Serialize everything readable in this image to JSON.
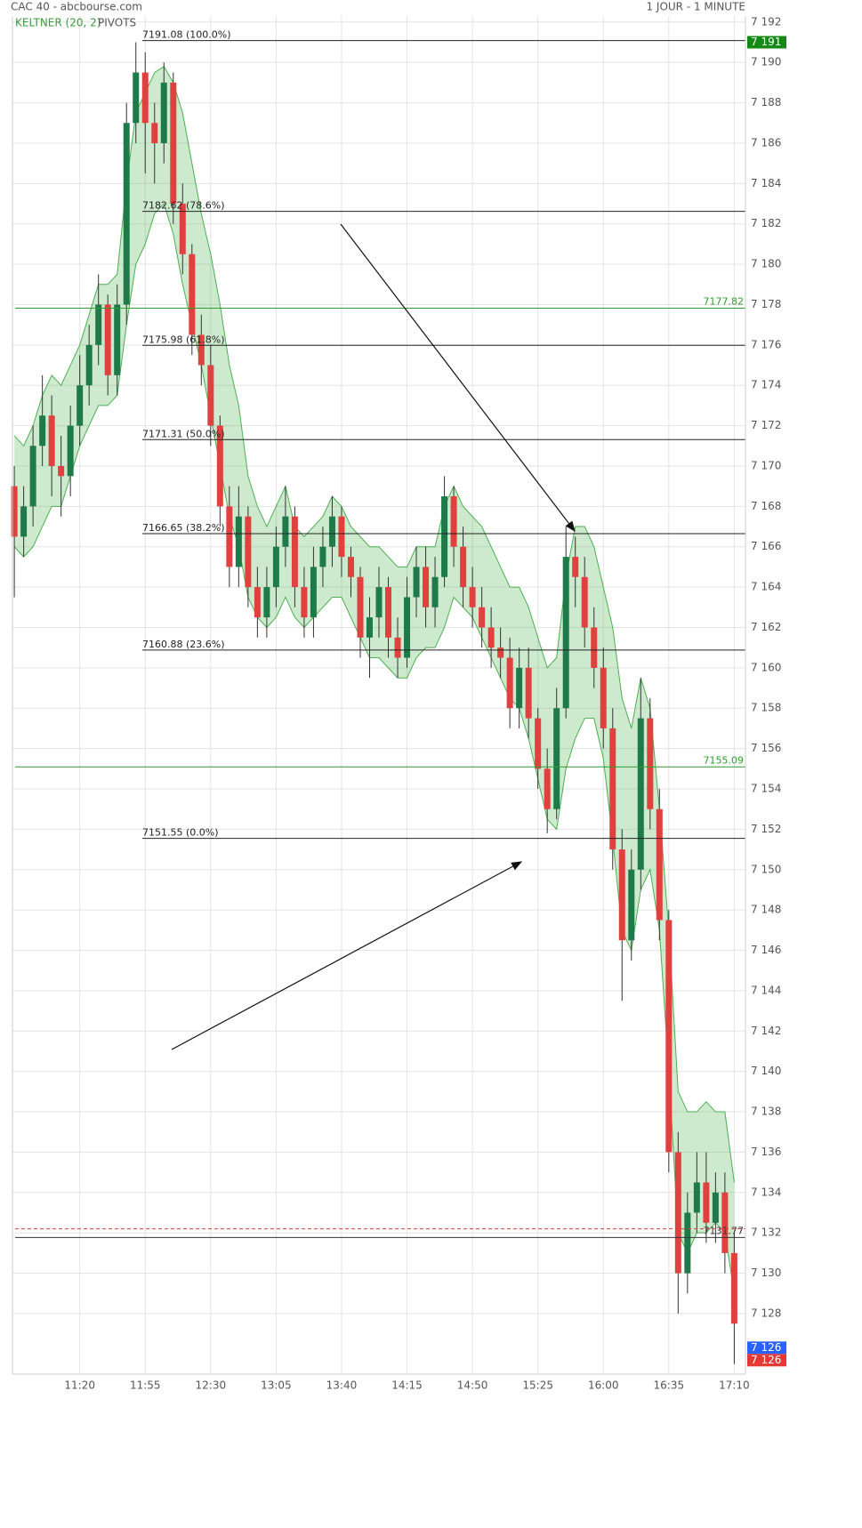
{
  "chart_data": {
    "type": "candlestick",
    "title": "CAC 40 - abcbourse.com",
    "subtitle": "1 JOUR - 1 MINUTE",
    "legend": [
      "KELTNER (20, 2)",
      "PIVOTS"
    ],
    "x": [
      "10:45",
      "10:50",
      "10:55",
      "11:00",
      "11:05",
      "11:10",
      "11:15",
      "11:20",
      "11:25",
      "11:30",
      "11:35",
      "11:40",
      "11:45",
      "11:50",
      "11:55",
      "12:00",
      "12:05",
      "12:10",
      "12:15",
      "12:20",
      "12:25",
      "12:30",
      "12:35",
      "12:40",
      "12:45",
      "12:50",
      "12:55",
      "13:00",
      "13:05",
      "13:10",
      "13:15",
      "13:20",
      "13:25",
      "13:30",
      "13:35",
      "13:40",
      "13:45",
      "13:50",
      "13:55",
      "14:00",
      "14:05",
      "14:10",
      "14:15",
      "14:20",
      "14:25",
      "14:30",
      "14:35",
      "14:40",
      "14:45",
      "14:50",
      "14:55",
      "15:00",
      "15:05",
      "15:10",
      "15:15",
      "15:20",
      "15:25",
      "15:30",
      "15:35",
      "15:40",
      "15:45",
      "15:50",
      "15:55",
      "16:00",
      "16:05",
      "16:10",
      "16:15",
      "16:20",
      "16:25",
      "16:30",
      "16:35",
      "16:40",
      "16:45",
      "16:50",
      "16:55",
      "17:00",
      "17:05",
      "17:10"
    ],
    "open": [
      7169,
      7166.5,
      7168,
      7171,
      7172.5,
      7170,
      7169.5,
      7172,
      7174,
      7176,
      7178,
      7174.5,
      7178,
      7187,
      7189.5,
      7187,
      7186,
      7189,
      7183,
      7180.5,
      7176.5,
      7175,
      7172,
      7168,
      7165,
      7167.5,
      7164,
      7162.5,
      7164,
      7166,
      7167.5,
      7164,
      7162.5,
      7165,
      7166,
      7167.5,
      7165.5,
      7164.5,
      7161.5,
      7162.5,
      7164,
      7161.5,
      7160.5,
      7163.5,
      7165,
      7163,
      7164.5,
      7168.5,
      7166,
      7164,
      7163,
      7162,
      7161,
      7160.5,
      7158,
      7160,
      7157.5,
      7155,
      7153,
      7158,
      7165.5,
      7164.5,
      7162,
      7160,
      7157,
      7151,
      7146.5,
      7150,
      7157.5,
      7153,
      7147.5,
      7136,
      7130,
      7133,
      7134.5,
      7132.5,
      7134,
      7131
    ],
    "high": [
      7170,
      7169,
      7172,
      7174.5,
      7173.5,
      7171.5,
      7173,
      7175.5,
      7177,
      7179.5,
      7178.5,
      7179,
      7188,
      7191,
      7190.5,
      7188,
      7190,
      7189.5,
      7184,
      7181,
      7177.5,
      7176,
      7172.5,
      7169,
      7169,
      7168,
      7165,
      7165,
      7167,
      7169,
      7168,
      7165,
      7166,
      7167,
      7168.5,
      7168,
      7166,
      7165,
      7163.5,
      7165,
      7164.5,
      7162.5,
      7164.5,
      7166,
      7166,
      7165.5,
      7169.5,
      7169,
      7167,
      7165,
      7164,
      7163,
      7162,
      7161.5,
      7161,
      7161,
      7158,
      7156,
      7159,
      7167,
      7166.5,
      7165.5,
      7163,
      7161,
      7158,
      7152,
      7151,
      7159.5,
      7158.5,
      7154,
      7148,
      7137,
      7134,
      7136,
      7136,
      7135,
      7135,
      7132
    ],
    "low": [
      7163.5,
      7165.5,
      7167,
      7170,
      7168.5,
      7167.5,
      7168.5,
      7171,
      7173,
      7175,
      7173.5,
      7173.5,
      7177,
      7186,
      7184.5,
      7184,
      7185,
      7182,
      7179.5,
      7175.5,
      7174,
      7171,
      7167,
      7164,
      7164,
      7163,
      7161.5,
      7161.5,
      7163,
      7165,
      7163,
      7161.5,
      7161.5,
      7164,
      7165,
      7164.5,
      7163.5,
      7160.5,
      7159.5,
      7161.5,
      7160.5,
      7159.5,
      7160,
      7162.5,
      7162,
      7162,
      7164,
      7165,
      7163,
      7162,
      7161,
      7160,
      7159.5,
      7157,
      7157,
      7156.5,
      7154,
      7151.8,
      7152.5,
      7157.5,
      7163,
      7161,
      7159,
      7156,
      7150,
      7143.5,
      7145.5,
      7149,
      7152,
      7146.5,
      7135,
      7128,
      7129,
      7132,
      7131.5,
      7131.5,
      7130,
      7125.5
    ],
    "close": [
      7166.5,
      7168,
      7171,
      7172.5,
      7170,
      7169.5,
      7172,
      7174,
      7176,
      7178,
      7174.5,
      7178,
      7187,
      7189.5,
      7187,
      7186,
      7189,
      7183,
      7180.5,
      7176.5,
      7175,
      7172,
      7168,
      7165,
      7167.5,
      7164,
      7162.5,
      7164,
      7166,
      7167.5,
      7164,
      7162.5,
      7165,
      7166,
      7167.5,
      7165.5,
      7164.5,
      7161.5,
      7162.5,
      7164,
      7161.5,
      7160.5,
      7163.5,
      7165,
      7163,
      7164.5,
      7168.5,
      7166,
      7164,
      7163,
      7162,
      7161,
      7160.5,
      7158,
      7160,
      7157.5,
      7155,
      7153,
      7158,
      7165.5,
      7164.5,
      7162,
      7160,
      7157,
      7151,
      7146.5,
      7150,
      7157.5,
      7153,
      7147.5,
      7136,
      7130,
      7133,
      7134.5,
      7132.5,
      7134,
      7131,
      7127.5
    ],
    "up_color": "#1f7a4a",
    "down_color": "#e0413f",
    "band": {
      "name": "KELTNER (20, 2)",
      "color": "#4caf50",
      "upper": [
        7171.5,
        7171,
        7172,
        7173.5,
        7174.5,
        7174,
        7175,
        7176,
        7177.5,
        7179,
        7179,
        7179.5,
        7184,
        7187.5,
        7188.5,
        7189.5,
        7189.8,
        7189,
        7187.5,
        7185,
        7182.5,
        7180.5,
        7178,
        7175,
        7173,
        7169.5,
        7168,
        7167,
        7168,
        7169,
        7167,
        7166.5,
        7167,
        7167.5,
        7168.5,
        7168,
        7167,
        7166.5,
        7166,
        7166,
        7165.5,
        7165,
        7165,
        7166,
        7166,
        7166,
        7168,
        7169,
        7168,
        7167.5,
        7167,
        7166,
        7165,
        7164,
        7164,
        7163,
        7161.5,
        7160,
        7160.5,
        7164.5,
        7167,
        7167,
        7166,
        7164,
        7162,
        7158.5,
        7157,
        7159.5,
        7158,
        7153,
        7147,
        7139,
        7138,
        7138,
        7138.5,
        7138,
        7138,
        7134.5
      ],
      "lower": [
        7166,
        7165.5,
        7166,
        7167,
        7168,
        7168,
        7169.5,
        7171,
        7172,
        7173,
        7173,
        7173.5,
        7177,
        7180,
        7181,
        7182.5,
        7183,
        7181.5,
        7179,
        7177,
        7175,
        7172.5,
        7170,
        7167.5,
        7166,
        7163.5,
        7162.5,
        7162,
        7162.5,
        7163.5,
        7162.5,
        7162,
        7162.5,
        7163,
        7163.5,
        7163.5,
        7162.5,
        7161.5,
        7160.5,
        7160.5,
        7160,
        7159.5,
        7159.5,
        7160.5,
        7161,
        7161,
        7162,
        7163.5,
        7163,
        7162.5,
        7161.5,
        7160.5,
        7159.5,
        7158.5,
        7158,
        7156.5,
        7154.5,
        7152.5,
        7152,
        7155,
        7156.5,
        7157.5,
        7157.5,
        7155.5,
        7151.5,
        7147,
        7146,
        7149,
        7150,
        7147,
        7140,
        7132,
        7131,
        7132,
        7132,
        7132.5,
        7132,
        7129
      ]
    },
    "fib_levels": [
      {
        "value": 7191.08,
        "label": "7191.08  (100.0%)"
      },
      {
        "value": 7182.62,
        "label": "7182.62  (78.6%)"
      },
      {
        "value": 7175.98,
        "label": "7175.98  (61.8%)"
      },
      {
        "value": 7171.31,
        "label": "7171.31  (50.0%)"
      },
      {
        "value": 7166.65,
        "label": "7166.65  (38.2%)"
      },
      {
        "value": 7160.88,
        "label": "7160.88  (23.6%)"
      },
      {
        "value": 7151.55,
        "label": "7151.55  (0.0%)"
      }
    ],
    "pivots": [
      {
        "value": 7177.82,
        "color": "#2e9e2e"
      },
      {
        "value": 7155.09,
        "color": "#2e9e2e"
      },
      {
        "value": 7131.77,
        "color": "#333333"
      }
    ],
    "dashed_level": {
      "value": 7132.2,
      "color": "#e53935"
    },
    "price_tags": [
      {
        "value": 7191,
        "label": "7 191",
        "color": "#138a13"
      },
      {
        "value": 7126,
        "label": "7 126",
        "color": "#2962ff"
      },
      {
        "value": 7126,
        "label": "7 126",
        "color": "#e53935"
      }
    ],
    "xlim": [
      "10:44",
      "17:16"
    ],
    "xticks": [
      "11:20",
      "11:55",
      "12:30",
      "13:05",
      "13:40",
      "14:15",
      "14:50",
      "15:25",
      "16:00",
      "16:35",
      "17:10"
    ],
    "ylim": [
      7125,
      7192.3
    ],
    "yticks": [
      {
        "value": 7128,
        "label": "7 128"
      },
      {
        "value": 7130,
        "label": "7 130"
      },
      {
        "value": 7132,
        "label": "7 132"
      },
      {
        "value": 7134,
        "label": "7 134"
      },
      {
        "value": 7136,
        "label": "7 136"
      },
      {
        "value": 7138,
        "label": "7 138"
      },
      {
        "value": 7140,
        "label": "7 140"
      },
      {
        "value": 7142,
        "label": "7 142"
      },
      {
        "value": 7144,
        "label": "7 144"
      },
      {
        "value": 7146,
        "label": "7 146"
      },
      {
        "value": 7148,
        "label": "7 148"
      },
      {
        "value": 7150,
        "label": "7 150"
      },
      {
        "value": 7152,
        "label": "7 152"
      },
      {
        "value": 7154,
        "label": "7 154"
      },
      {
        "value": 7156,
        "label": "7 156"
      },
      {
        "value": 7158,
        "label": "7 158"
      },
      {
        "value": 7160,
        "label": "7 160"
      },
      {
        "value": 7162,
        "label": "7 162"
      },
      {
        "value": 7164,
        "label": "7 164"
      },
      {
        "value": 7166,
        "label": "7 166"
      },
      {
        "value": 7168,
        "label": "7 168"
      },
      {
        "value": 7170,
        "label": "7 170"
      },
      {
        "value": 7172,
        "label": "7 172"
      },
      {
        "value": 7174,
        "label": "7 174"
      },
      {
        "value": 7176,
        "label": "7 176"
      },
      {
        "value": 7178,
        "label": "7 178"
      },
      {
        "value": 7180,
        "label": "7 180"
      },
      {
        "value": 7182,
        "label": "7 182"
      },
      {
        "value": 7184,
        "label": "7 184"
      },
      {
        "value": 7186,
        "label": "7 186"
      },
      {
        "value": 7188,
        "label": "7 188"
      },
      {
        "value": 7190,
        "label": "7 190"
      },
      {
        "value": 7192,
        "label": "7 192"
      }
    ],
    "grid": true
  }
}
